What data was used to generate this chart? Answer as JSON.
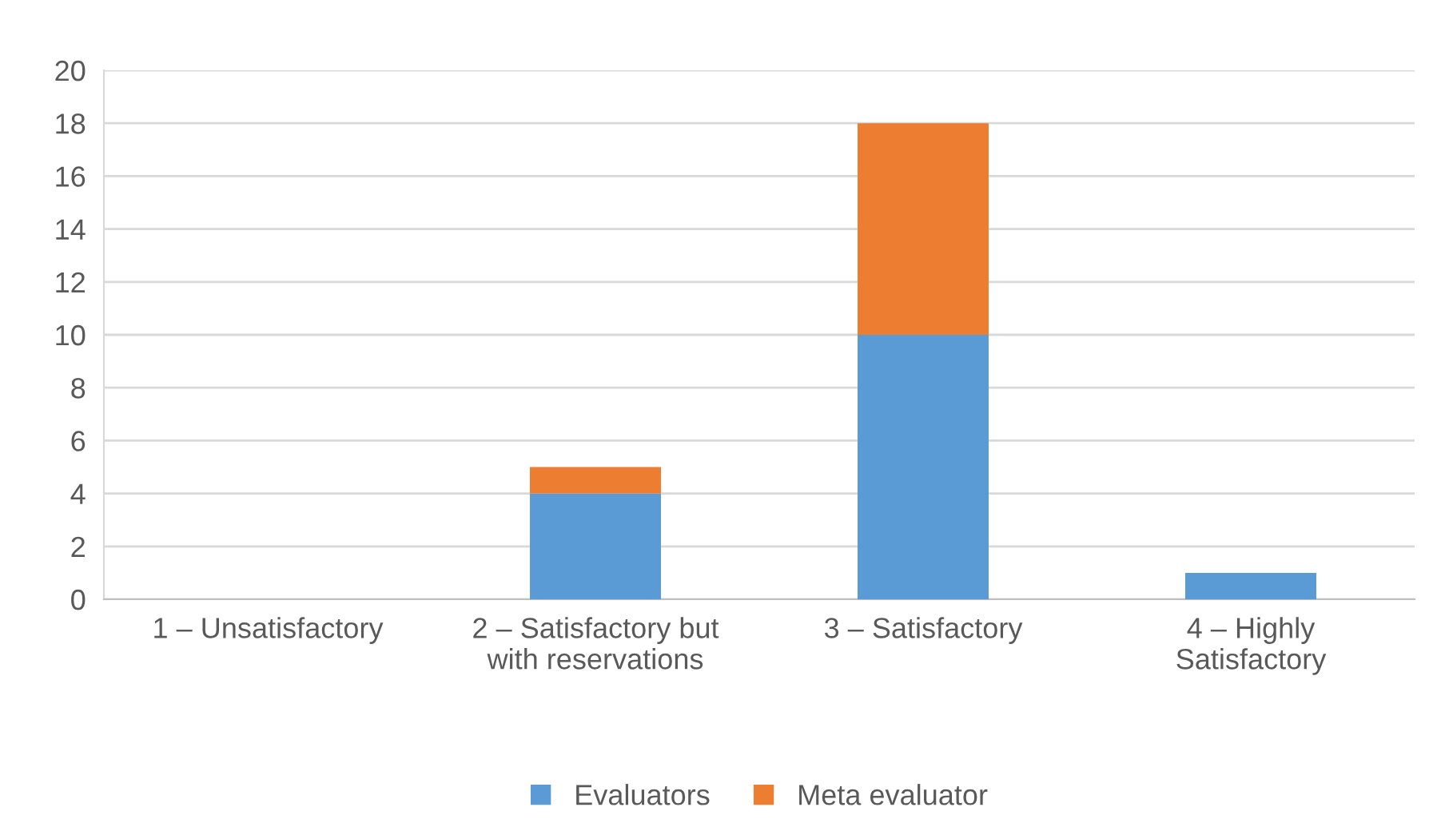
{
  "chart_data": {
    "type": "bar",
    "stacked": true,
    "categories": [
      "1 – Unsatisfactory",
      "2 – Satisfactory but\nwith reservations",
      "3 – Satisfactory",
      "4 – Highly\nSatisfactory"
    ],
    "series": [
      {
        "name": "Evaluators",
        "color": "#5b9bd5",
        "values": [
          0,
          4,
          10,
          1
        ]
      },
      {
        "name": "Meta evaluator",
        "color": "#ed7d31",
        "values": [
          0,
          1,
          8,
          0
        ]
      }
    ],
    "ylim": [
      0,
      20
    ],
    "yticks": [
      0,
      2,
      4,
      6,
      8,
      10,
      12,
      14,
      16,
      18,
      20
    ],
    "grid": "y",
    "legend": "bottom"
  }
}
